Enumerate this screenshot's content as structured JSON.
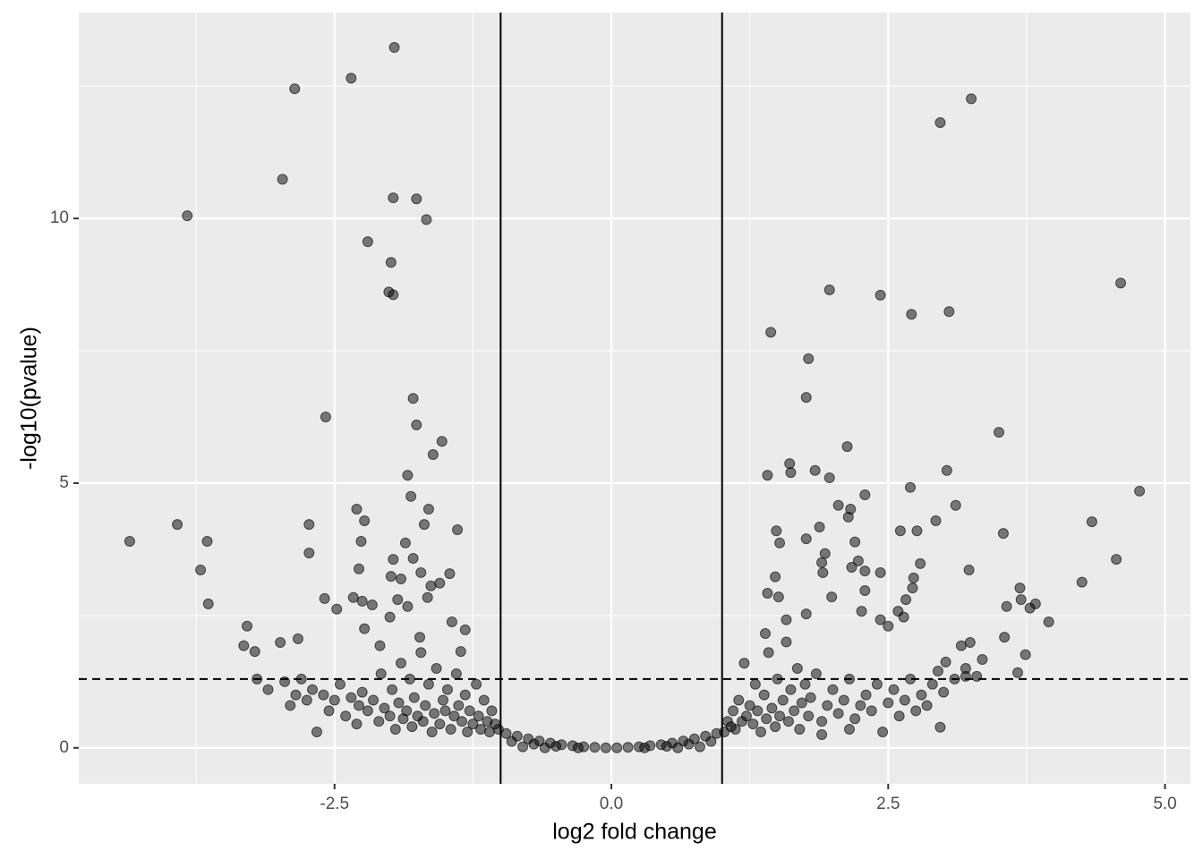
{
  "chart_data": {
    "type": "scatter",
    "x_label": "log2 fold change",
    "y_label": "-log10(pvalue)",
    "xlim": [
      -4.81,
      5.23
    ],
    "ylim": [
      -0.68,
      13.89
    ],
    "xticks": [
      -2.5,
      {
        "value": 0,
        "label": "0.0"
      },
      2.5,
      {
        "value": 5,
        "label": "5.0"
      }
    ],
    "yticks": [
      0,
      5,
      10
    ],
    "xminor": [
      -3.75,
      -1.25,
      1.25,
      3.75
    ],
    "yminor": [
      2.5,
      7.5,
      12.5
    ],
    "grid": true,
    "color": "#000000",
    "vlines": [
      -1,
      1
    ],
    "hline": 1.3,
    "x": [
      -1.96,
      -2.35,
      -2.86,
      -2.97,
      -3.83,
      -1.97,
      -1.76,
      -1.67,
      -2.2,
      -1.99,
      -2.01,
      -1.97,
      -2.58,
      -1.79,
      -1.76,
      -1.53,
      -1.61,
      -1.84,
      -1.81,
      -4.35,
      -3.92,
      -3.65,
      -3.71,
      -3.64,
      -3.29,
      -3.32,
      -3.22,
      -2.99,
      -2.83,
      -2.73,
      -2.73,
      -2.59,
      -2.48,
      -2.3,
      -2.23,
      -2.26,
      -2.28,
      -2.33,
      -2.25,
      -2.23,
      -2.16,
      -1.86,
      -1.97,
      -1.79,
      -1.99,
      -1.9,
      -1.72,
      -1.65,
      -1.69,
      -1.39,
      -1.46,
      -1.55,
      -1.63,
      -1.93,
      -2.0,
      -1.84,
      -1.66,
      -1.44,
      -1.32,
      -2.09,
      -1.73,
      -1.36,
      3.25,
      2.97,
      4.6,
      1.97,
      2.43,
      3.05,
      2.71,
      1.44,
      1.78,
      1.76,
      3.5,
      2.13,
      1.41,
      1.61,
      1.62,
      1.84,
      1.97,
      3.03,
      2.7,
      4.77,
      2.29,
      2.05,
      2.16,
      2.14,
      3.11,
      2.93,
      4.34,
      1.49,
      2.61,
      2.76,
      3.54,
      1.88,
      1.76,
      1.52,
      2.2,
      1.93,
      1.9,
      2.23,
      2.79,
      4.56,
      2.17,
      2.43,
      2.29,
      3.23,
      2.73,
      1.48,
      1.91,
      4.25,
      2.72,
      2.29,
      3.69,
      3.7,
      3.83,
      3.57,
      3.78,
      1.99,
      2.26,
      1.41,
      1.51,
      3.95,
      3.55,
      3.74,
      3.67,
      3.24,
      3.35,
      3.16,
      3.02,
      3.2,
      2.66,
      2.59,
      2.64,
      2.43,
      2.5,
      2.97,
      1.39,
      1.58,
      1.76,
      -2.9,
      -2.85,
      -2.8,
      -2.75,
      -2.7,
      -2.66,
      -2.6,
      -2.55,
      -2.5,
      -2.45,
      -2.4,
      -2.35,
      -2.3,
      -2.28,
      -2.25,
      -2.2,
      -2.15,
      -2.1,
      -2.08,
      -2.05,
      -2.0,
      -1.98,
      -1.95,
      -1.92,
      -1.9,
      -1.88,
      -1.85,
      -1.82,
      -1.8,
      -1.78,
      -1.75,
      -1.72,
      -1.7,
      -1.68,
      -1.65,
      -1.62,
      -1.6,
      -1.58,
      -1.55,
      -1.52,
      -1.5,
      -1.48,
      -1.45,
      -1.42,
      -1.4,
      -1.38,
      -1.35,
      -1.32,
      -1.3,
      -1.28,
      -1.25,
      -1.22,
      -1.2,
      -1.18,
      -1.15,
      -1.12,
      -1.1,
      -1.08,
      -1.05,
      -1.02,
      -3.1,
      -3.2,
      -2.95,
      1.02,
      1.05,
      1.08,
      1.1,
      1.12,
      1.15,
      1.18,
      1.2,
      1.22,
      1.25,
      1.28,
      1.3,
      1.32,
      1.35,
      1.38,
      1.4,
      1.42,
      1.45,
      1.48,
      1.5,
      1.52,
      1.55,
      1.58,
      1.6,
      1.62,
      1.65,
      1.68,
      1.7,
      1.72,
      1.75,
      1.78,
      1.8,
      1.85,
      1.9,
      1.95,
      2.0,
      2.05,
      2.1,
      2.15,
      2.2,
      2.25,
      2.3,
      2.35,
      2.4,
      2.45,
      2.5,
      2.55,
      2.6,
      2.65,
      2.7,
      2.75,
      2.8,
      2.85,
      2.9,
      2.95,
      3.0,
      3.1,
      3.2,
      3.3,
      2.15,
      1.9,
      -0.95,
      -0.85,
      -0.75,
      -0.65,
      -0.55,
      -0.45,
      -0.35,
      -0.25,
      -0.15,
      -0.05,
      0.05,
      0.15,
      0.25,
      0.35,
      0.45,
      0.55,
      0.65,
      0.75,
      0.85,
      0.95,
      -0.9,
      -0.7,
      -0.5,
      0.5,
      0.7,
      0.9,
      -0.3,
      0.3,
      -0.6,
      0.6,
      -0.8,
      0.8
    ],
    "values": [
      13.23,
      12.65,
      12.45,
      10.74,
      10.05,
      10.39,
      10.37,
      9.98,
      9.56,
      9.17,
      8.61,
      8.56,
      6.25,
      6.6,
      6.1,
      5.79,
      5.54,
      5.15,
      4.75,
      3.9,
      4.22,
      3.9,
      3.36,
      2.72,
      2.3,
      1.93,
      1.82,
      1.99,
      2.06,
      4.22,
      3.68,
      2.82,
      2.62,
      4.51,
      4.29,
      3.9,
      3.38,
      2.84,
      2.77,
      2.25,
      2.7,
      3.87,
      3.56,
      3.58,
      3.24,
      3.19,
      3.31,
      4.51,
      4.22,
      4.12,
      3.29,
      3.11,
      3.06,
      2.8,
      2.47,
      2.67,
      2.84,
      2.38,
      2.23,
      1.93,
      2.09,
      1.82,
      12.26,
      11.81,
      8.78,
      8.65,
      8.55,
      8.24,
      8.19,
      7.85,
      7.35,
      6.62,
      5.96,
      5.69,
      5.15,
      5.37,
      5.2,
      5.24,
      5.1,
      5.24,
      4.92,
      4.85,
      4.78,
      4.58,
      4.51,
      4.36,
      4.58,
      4.29,
      4.27,
      4.1,
      4.1,
      4.1,
      4.05,
      4.17,
      3.95,
      3.87,
      3.89,
      3.67,
      3.5,
      3.53,
      3.48,
      3.56,
      3.41,
      3.31,
      3.34,
      3.36,
      3.21,
      3.23,
      3.31,
      3.13,
      3.02,
      2.97,
      3.02,
      2.8,
      2.72,
      2.67,
      2.64,
      2.85,
      2.58,
      2.92,
      2.85,
      2.38,
      2.09,
      1.76,
      1.42,
      1.99,
      1.67,
      1.93,
      1.62,
      1.35,
      2.8,
      2.58,
      2.47,
      2.42,
      2.3,
      0.39,
      2.16,
      2.42,
      2.53,
      0.8,
      1.0,
      1.3,
      0.9,
      1.1,
      0.3,
      1.0,
      0.7,
      0.9,
      1.2,
      0.6,
      0.95,
      0.45,
      0.8,
      1.05,
      0.7,
      0.9,
      0.5,
      1.4,
      0.75,
      0.6,
      1.1,
      0.35,
      0.85,
      1.6,
      0.55,
      0.7,
      1.3,
      0.4,
      0.95,
      0.6,
      1.8,
      0.5,
      0.8,
      1.2,
      0.3,
      0.65,
      1.5,
      0.45,
      0.9,
      0.7,
      1.1,
      0.35,
      0.6,
      1.4,
      0.8,
      0.5,
      1.0,
      0.3,
      0.7,
      0.45,
      1.2,
      0.6,
      0.35,
      0.9,
      0.5,
      0.3,
      0.7,
      0.45,
      0.35,
      1.1,
      1.3,
      1.25,
      0.3,
      0.5,
      0.4,
      0.7,
      0.35,
      0.9,
      0.5,
      1.6,
      0.6,
      0.8,
      0.45,
      1.2,
      0.7,
      0.3,
      1.0,
      0.55,
      1.8,
      0.75,
      0.4,
      1.3,
      0.6,
      0.9,
      2.0,
      0.5,
      1.1,
      0.7,
      1.5,
      0.35,
      0.85,
      1.2,
      0.6,
      0.95,
      1.4,
      0.5,
      0.8,
      1.1,
      0.65,
      0.9,
      1.3,
      0.55,
      0.8,
      1.0,
      0.7,
      1.2,
      0.3,
      0.85,
      1.1,
      0.6,
      0.9,
      1.3,
      0.7,
      1.0,
      0.8,
      1.2,
      1.45,
      1.05,
      1.3,
      1.5,
      1.35,
      0.35,
      0.25,
      0.27,
      0.22,
      0.17,
      0.13,
      0.09,
      0.06,
      0.04,
      0.02,
      0.01,
      0,
      0,
      0.01,
      0.02,
      0.04,
      0.06,
      0.09,
      0.13,
      0.17,
      0.22,
      0.27,
      0.12,
      0.07,
      0.03,
      0.03,
      0.07,
      0.12,
      0,
      0,
      0,
      0,
      0.02,
      0.02
    ]
  }
}
